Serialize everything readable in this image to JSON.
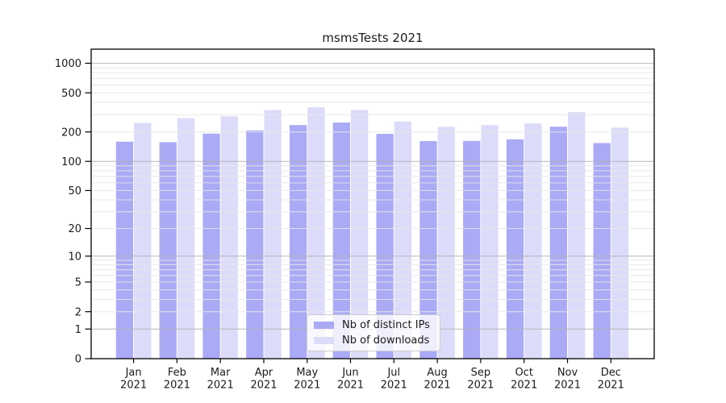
{
  "chart_data": {
    "type": "bar",
    "title": "msmsTests 2021",
    "scale": "log1p",
    "year": "2021",
    "categories": [
      "Jan",
      "Feb",
      "Mar",
      "Apr",
      "May",
      "Jun",
      "Jul",
      "Aug",
      "Sep",
      "Oct",
      "Nov",
      "Dec"
    ],
    "series": [
      {
        "name": "Nb of distinct IPs",
        "color": "#aaaaf6",
        "values": [
          159,
          157,
          192,
          207,
          235,
          249,
          191,
          161,
          162,
          168,
          226,
          154
        ]
      },
      {
        "name": "Nb of downloads",
        "color": "#dcdcfa",
        "values": [
          247,
          277,
          289,
          335,
          357,
          335,
          255,
          225,
          235,
          244,
          318,
          221
        ]
      }
    ],
    "yticks": [
      0,
      1,
      2,
      5,
      10,
      20,
      50,
      100,
      200,
      500,
      1000
    ],
    "ylim": [
      0,
      1390
    ],
    "xlabel": "",
    "ylabel": "",
    "grid": true,
    "legend_position": "lower-center",
    "axis_color": "#000000",
    "major_grid_color": "#b3b3b3",
    "minor_grid_color": "#e7e7e7",
    "text_color": "#1a1a1a"
  }
}
